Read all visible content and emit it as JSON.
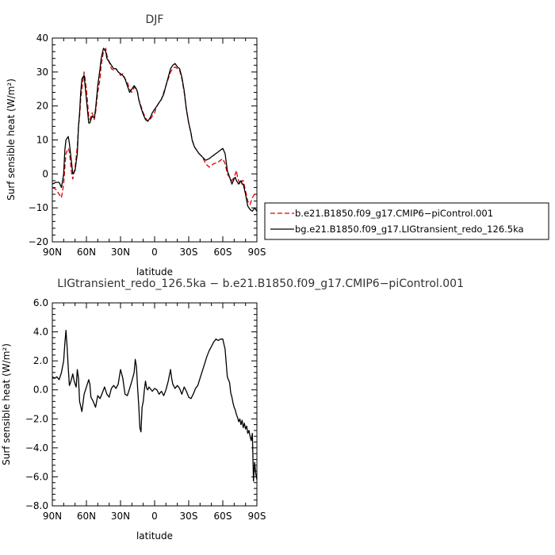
{
  "chart_data": [
    {
      "type": "line",
      "title": "DJF",
      "xlabel": "latitude",
      "ylabel": "Surf sensible heat  (W/m²)",
      "xlim": [
        90,
        -90
      ],
      "ylim": [
        -20,
        40
      ],
      "xtick_values": [
        90,
        60,
        30,
        0,
        -30,
        -60,
        -90
      ],
      "xtick_labels": [
        "90N",
        "60N",
        "30N",
        "0",
        "30S",
        "60S",
        "90S"
      ],
      "ytick_values": [
        -20,
        -10,
        0,
        10,
        20,
        30,
        40
      ],
      "ytick_labels": [
        "−20",
        "−10",
        "0",
        "10",
        "20",
        "30",
        "40"
      ],
      "legend_position": "right",
      "series": [
        {
          "name": "b.e21.B1850.f09_g17.CMIP6−piControl.001",
          "color": "#dd0000",
          "style": "dashed",
          "x": [
            90,
            87,
            84,
            82,
            80,
            79,
            78,
            76,
            75,
            73,
            72,
            70,
            68,
            67,
            66,
            65,
            64,
            62,
            60,
            58,
            57,
            55,
            53,
            52,
            50,
            48,
            47,
            45,
            43,
            42,
            40,
            38,
            36,
            34,
            32,
            30,
            28,
            26,
            24,
            22,
            20,
            18,
            16,
            15,
            14,
            12,
            10,
            8,
            6,
            4,
            2,
            0,
            -2,
            -4,
            -6,
            -8,
            -10,
            -12,
            -14,
            -16,
            -18,
            -20,
            -22,
            -24,
            -26,
            -28,
            -30,
            -32,
            -33,
            -35,
            -37,
            -39,
            -42,
            -45,
            -48,
            -50,
            -52,
            -54,
            -56,
            -58,
            -60,
            -62,
            -64,
            -66,
            -68,
            -70,
            -71,
            -72,
            -73,
            -74,
            -75,
            -76,
            -77,
            -78,
            -80,
            -82,
            -84,
            -86,
            -88,
            -90
          ],
          "y": [
            -4,
            -4.5,
            -6,
            -7,
            -3,
            2,
            6,
            7.5,
            6.5,
            0,
            -1.5,
            2,
            8,
            14,
            17,
            22,
            25,
            30,
            25,
            17,
            16,
            18,
            16,
            18,
            24,
            28,
            32,
            36,
            37,
            35,
            33,
            31,
            30.5,
            31,
            30,
            29,
            29.5,
            28,
            27,
            25,
            24,
            25.5,
            25,
            24,
            22,
            20,
            18,
            16.5,
            15.5,
            16,
            17,
            18,
            20,
            21,
            22,
            24,
            26,
            28,
            30,
            31,
            31.5,
            31,
            30.5,
            28,
            24,
            19,
            15,
            12,
            10,
            8,
            7,
            6,
            5,
            3,
            2,
            2.5,
            3,
            3.2,
            3.5,
            4,
            4.5,
            3,
            0,
            -1,
            -2,
            -1,
            0,
            1,
            -1,
            -2,
            -3,
            -3,
            -2,
            -2,
            -5,
            -8,
            -9,
            -7,
            -6,
            -5.5
          ]
        },
        {
          "name": "bg.e21.B1850.f09_g17.LIGtransient_redo_126.5ka",
          "color": "#000000",
          "style": "solid",
          "x": [
            90,
            87,
            84,
            82,
            80,
            79,
            78,
            76,
            75,
            73,
            72,
            70,
            68,
            67,
            66,
            65,
            64,
            62,
            60,
            58,
            57,
            55,
            53,
            52,
            50,
            48,
            47,
            45,
            43,
            42,
            40,
            38,
            36,
            34,
            32,
            30,
            28,
            26,
            24,
            22,
            20,
            18,
            16,
            15,
            14,
            12,
            10,
            8,
            6,
            4,
            2,
            0,
            -2,
            -4,
            -6,
            -8,
            -10,
            -12,
            -14,
            -16,
            -18,
            -20,
            -22,
            -24,
            -26,
            -28,
            -30,
            -32,
            -33,
            -35,
            -37,
            -39,
            -42,
            -45,
            -48,
            -50,
            -52,
            -54,
            -56,
            -58,
            -60,
            -62,
            -64,
            -66,
            -68,
            -70,
            -71,
            -72,
            -73,
            -74,
            -75,
            -76,
            -77,
            -78,
            -80,
            -82,
            -84,
            -86,
            -88,
            -90
          ],
          "y": [
            -3,
            -2.5,
            -2.5,
            -4,
            0,
            7,
            10,
            11,
            9,
            3,
            0,
            1,
            6,
            14,
            18,
            24,
            28,
            29,
            22,
            15,
            15,
            17,
            16.5,
            19,
            26,
            31,
            34,
            37,
            36,
            34,
            33,
            32,
            31,
            31,
            30,
            29.5,
            29,
            28,
            26,
            24,
            25,
            26,
            25,
            24,
            22,
            19.5,
            17.5,
            16,
            15.5,
            16.5,
            18,
            19,
            20,
            21,
            22,
            23.5,
            26,
            28.5,
            31,
            32,
            32.5,
            31.5,
            31,
            28.5,
            24.5,
            19,
            15,
            12,
            10,
            8,
            7,
            6,
            5,
            4,
            4.5,
            5,
            5.5,
            6,
            6.5,
            7,
            7.5,
            6,
            1,
            -1,
            -3,
            -1.5,
            -1,
            -2,
            -2.5,
            -3,
            -2.5,
            -2,
            -3,
            -3,
            -6,
            -9.5,
            -10.5,
            -11,
            -10,
            -11
          ]
        }
      ]
    },
    {
      "type": "line",
      "title": "LIGtransient_redo_126.5ka  −  b.e21.B1850.f09_g17.CMIP6−piControl.001",
      "xlabel": "latitude",
      "ylabel": "Surf sensible heat  (W/m²)",
      "xlim": [
        90,
        -90
      ],
      "ylim": [
        -8,
        6
      ],
      "xtick_values": [
        90,
        60,
        30,
        0,
        -30,
        -60,
        -90
      ],
      "xtick_labels": [
        "90N",
        "60N",
        "30N",
        "0",
        "30S",
        "60S",
        "90S"
      ],
      "ytick_values": [
        -8,
        -6,
        -4,
        -2,
        0,
        2,
        4,
        6
      ],
      "ytick_labels": [
        "−8.0",
        "−6.0",
        "−4.0",
        "−2.0",
        "0.0",
        "2.0",
        "4.0",
        "6.0"
      ],
      "series": [
        {
          "name": "",
          "color": "#000000",
          "style": "solid",
          "x": [
            90,
            88,
            86,
            84,
            82,
            80,
            79,
            78,
            77,
            76,
            75,
            74,
            73,
            72,
            71,
            70,
            69,
            68,
            67,
            66,
            64,
            62,
            60,
            58,
            57,
            56,
            54,
            52,
            50,
            48,
            46,
            44,
            42,
            40,
            38,
            36,
            34,
            32,
            30,
            28,
            26,
            24,
            22,
            20,
            18,
            17,
            16,
            15,
            14,
            13,
            12,
            11,
            10,
            9,
            8,
            7,
            6,
            5,
            4,
            2,
            0,
            -2,
            -4,
            -6,
            -8,
            -10,
            -12,
            -13,
            -14,
            -15,
            -16,
            -18,
            -20,
            -22,
            -24,
            -26,
            -28,
            -30,
            -32,
            -34,
            -36,
            -38,
            -40,
            -42,
            -44,
            -46,
            -48,
            -50,
            -52,
            -54,
            -56,
            -58,
            -60,
            -62,
            -64,
            -66,
            -67,
            -68,
            -69,
            -70,
            -71,
            -72,
            -73,
            -74,
            -75,
            -76,
            -77,
            -78,
            -79,
            -80,
            -81,
            -82,
            -83,
            -84,
            -85,
            -86,
            -87,
            -88,
            -89,
            -90
          ],
          "y": [
            0.9,
            0.8,
            0.9,
            0.7,
            1.2,
            2.0,
            3.2,
            4.1,
            3.0,
            1.5,
            0.3,
            0.5,
            0.8,
            1.1,
            0.7,
            0.4,
            0.2,
            1.4,
            0.8,
            -0.8,
            -1.5,
            -0.3,
            0.2,
            0.7,
            0.4,
            -0.5,
            -0.8,
            -1.2,
            -0.4,
            -0.6,
            -0.2,
            0.2,
            -0.3,
            -0.5,
            0.1,
            0.3,
            0.1,
            0.4,
            1.4,
            0.8,
            -0.3,
            -0.4,
            0.1,
            0.6,
            1.2,
            2.1,
            1.6,
            0.2,
            -1.0,
            -2.6,
            -2.9,
            -1.2,
            -0.8,
            0.0,
            0.6,
            0.1,
            0.0,
            0.2,
            0.1,
            -0.1,
            0.1,
            0.0,
            -0.3,
            -0.1,
            -0.4,
            0.0,
            0.6,
            1.0,
            1.4,
            0.8,
            0.4,
            0.1,
            0.3,
            0.1,
            -0.3,
            0.2,
            -0.1,
            -0.5,
            -0.6,
            -0.3,
            0.1,
            0.3,
            0.8,
            1.3,
            1.8,
            2.3,
            2.7,
            3.0,
            3.3,
            3.5,
            3.4,
            3.5,
            3.5,
            2.8,
            0.9,
            0.5,
            -0.2,
            -0.5,
            -0.9,
            -1.2,
            -1.4,
            -1.7,
            -1.9,
            -2.2,
            -2.0,
            -2.4,
            -2.1,
            -2.6,
            -2.3,
            -2.7,
            -2.5,
            -3.0,
            -2.8,
            -3.2,
            -3.5,
            -3.0,
            -6.3,
            -5.0,
            -5.8,
            -6.2
          ]
        }
      ]
    }
  ]
}
